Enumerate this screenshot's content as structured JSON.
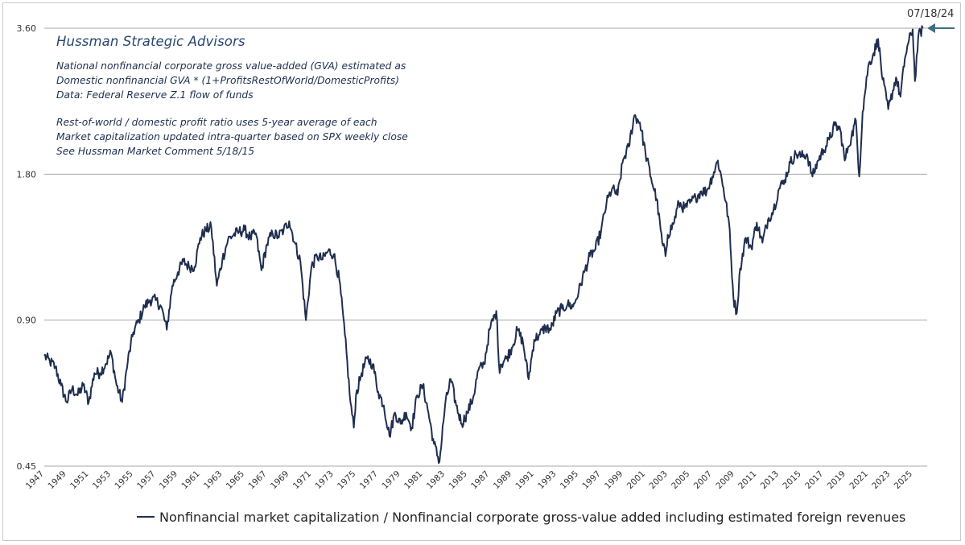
{
  "chart_data": {
    "type": "line",
    "title": "Hussman Strategic Advisors",
    "annotations": [
      "National nonfinancial corporate gross value-added (GVA) estimated as",
      "Domestic nonfinancial GVA * (1+ProfitsRestOfWorld/DomesticProfits)",
      "Data: Federal Reserve Z.1 flow of funds",
      "Rest-of-world / domestic profit ratio uses 5-year average of each",
      "Market capitalization updated intra-quarter based on SPX weekly close",
      "See Hussman Market Comment 5/18/15"
    ],
    "y_scale": "log",
    "ylim": [
      0.45,
      3.6
    ],
    "y_ticks": [
      0.45,
      0.9,
      1.8,
      3.6
    ],
    "y_tick_labels": [
      "0.45",
      "0.90",
      "1.80",
      "3.60"
    ],
    "xlim": [
      1947,
      2026.3
    ],
    "x_ticks": [
      1947,
      1949,
      1951,
      1953,
      1955,
      1957,
      1959,
      1961,
      1963,
      1965,
      1967,
      1969,
      1971,
      1973,
      1975,
      1977,
      1979,
      1981,
      1983,
      1985,
      1987,
      1989,
      1991,
      1993,
      1995,
      1997,
      1999,
      2001,
      2003,
      2005,
      2007,
      2009,
      2011,
      2013,
      2015,
      2017,
      2019,
      2021,
      2023,
      2025
    ],
    "latest_marker": "07/18/24",
    "legend": [
      "Nonfinancial market capitalization / Nonfinancial corporate gross-value added including estimated foreign revenues"
    ],
    "grid": "horizontal",
    "series": [
      {
        "name": "Nonfinancial market capitalization / Nonfinancial corporate gross-value added including estimated foreign revenues",
        "color": "#1f2e4f",
        "points": [
          [
            1947.0,
            0.76
          ],
          [
            1947.5,
            0.74
          ],
          [
            1948.0,
            0.72
          ],
          [
            1948.5,
            0.66
          ],
          [
            1949.0,
            0.61
          ],
          [
            1949.5,
            0.65
          ],
          [
            1950.0,
            0.63
          ],
          [
            1950.5,
            0.66
          ],
          [
            1951.0,
            0.61
          ],
          [
            1951.5,
            0.7
          ],
          [
            1952.0,
            0.7
          ],
          [
            1952.5,
            0.73
          ],
          [
            1953.0,
            0.77
          ],
          [
            1953.5,
            0.66
          ],
          [
            1954.0,
            0.61
          ],
          [
            1954.5,
            0.74
          ],
          [
            1955.0,
            0.85
          ],
          [
            1955.5,
            0.9
          ],
          [
            1956.0,
            0.96
          ],
          [
            1956.5,
            0.99
          ],
          [
            1957.0,
            0.99
          ],
          [
            1957.5,
            0.96
          ],
          [
            1958.0,
            0.86
          ],
          [
            1958.5,
            1.06
          ],
          [
            1959.0,
            1.13
          ],
          [
            1959.5,
            1.19
          ],
          [
            1960.0,
            1.16
          ],
          [
            1960.5,
            1.16
          ],
          [
            1961.0,
            1.33
          ],
          [
            1961.5,
            1.38
          ],
          [
            1962.0,
            1.4
          ],
          [
            1962.5,
            1.06
          ],
          [
            1963.0,
            1.2
          ],
          [
            1963.5,
            1.32
          ],
          [
            1964.0,
            1.35
          ],
          [
            1964.5,
            1.37
          ],
          [
            1965.0,
            1.38
          ],
          [
            1965.5,
            1.33
          ],
          [
            1966.0,
            1.36
          ],
          [
            1966.5,
            1.14
          ],
          [
            1967.0,
            1.29
          ],
          [
            1967.5,
            1.36
          ],
          [
            1968.0,
            1.34
          ],
          [
            1968.5,
            1.38
          ],
          [
            1969.0,
            1.44
          ],
          [
            1969.5,
            1.3
          ],
          [
            1970.0,
            1.19
          ],
          [
            1970.5,
            0.9
          ],
          [
            1971.0,
            1.16
          ],
          [
            1971.5,
            1.22
          ],
          [
            1972.0,
            1.2
          ],
          [
            1972.5,
            1.25
          ],
          [
            1973.0,
            1.23
          ],
          [
            1973.5,
            1.09
          ],
          [
            1974.0,
            0.84
          ],
          [
            1974.5,
            0.61
          ],
          [
            1974.8,
            0.54
          ],
          [
            1975.0,
            0.63
          ],
          [
            1975.5,
            0.7
          ],
          [
            1976.0,
            0.75
          ],
          [
            1976.5,
            0.73
          ],
          [
            1977.0,
            0.64
          ],
          [
            1977.5,
            0.6
          ],
          [
            1978.0,
            0.52
          ],
          [
            1978.5,
            0.58
          ],
          [
            1979.0,
            0.55
          ],
          [
            1979.5,
            0.58
          ],
          [
            1980.0,
            0.54
          ],
          [
            1980.5,
            0.63
          ],
          [
            1981.0,
            0.66
          ],
          [
            1981.5,
            0.58
          ],
          [
            1982.0,
            0.5
          ],
          [
            1982.5,
            0.46
          ],
          [
            1983.0,
            0.6
          ],
          [
            1983.5,
            0.68
          ],
          [
            1984.0,
            0.6
          ],
          [
            1984.5,
            0.55
          ],
          [
            1985.0,
            0.58
          ],
          [
            1985.5,
            0.62
          ],
          [
            1986.0,
            0.71
          ],
          [
            1986.5,
            0.73
          ],
          [
            1987.0,
            0.86
          ],
          [
            1987.6,
            0.94
          ],
          [
            1987.9,
            0.7
          ],
          [
            1988.0,
            0.73
          ],
          [
            1988.5,
            0.75
          ],
          [
            1989.0,
            0.79
          ],
          [
            1989.5,
            0.86
          ],
          [
            1990.0,
            0.81
          ],
          [
            1990.5,
            0.68
          ],
          [
            1991.0,
            0.82
          ],
          [
            1991.5,
            0.84
          ],
          [
            1992.0,
            0.87
          ],
          [
            1992.5,
            0.86
          ],
          [
            1993.0,
            0.93
          ],
          [
            1993.5,
            0.95
          ],
          [
            1994.0,
            0.97
          ],
          [
            1994.5,
            0.96
          ],
          [
            1995.0,
            1.03
          ],
          [
            1995.5,
            1.13
          ],
          [
            1996.0,
            1.22
          ],
          [
            1996.5,
            1.26
          ],
          [
            1997.0,
            1.37
          ],
          [
            1997.5,
            1.57
          ],
          [
            1998.0,
            1.68
          ],
          [
            1998.5,
            1.63
          ],
          [
            1999.0,
            1.93
          ],
          [
            1999.5,
            2.05
          ],
          [
            2000.0,
            2.38
          ],
          [
            2000.5,
            2.3
          ],
          [
            2001.0,
            1.99
          ],
          [
            2001.5,
            1.77
          ],
          [
            2002.0,
            1.6
          ],
          [
            2002.5,
            1.3
          ],
          [
            2002.8,
            1.22
          ],
          [
            2003.0,
            1.35
          ],
          [
            2003.5,
            1.42
          ],
          [
            2004.0,
            1.57
          ],
          [
            2004.5,
            1.53
          ],
          [
            2005.0,
            1.57
          ],
          [
            2005.5,
            1.61
          ],
          [
            2006.0,
            1.66
          ],
          [
            2006.5,
            1.66
          ],
          [
            2007.0,
            1.78
          ],
          [
            2007.5,
            1.92
          ],
          [
            2008.0,
            1.69
          ],
          [
            2008.5,
            1.43
          ],
          [
            2008.9,
            1.0
          ],
          [
            2009.2,
            0.93
          ],
          [
            2009.5,
            1.15
          ],
          [
            2010.0,
            1.33
          ],
          [
            2010.5,
            1.27
          ],
          [
            2011.0,
            1.43
          ],
          [
            2011.5,
            1.3
          ],
          [
            2012.0,
            1.45
          ],
          [
            2012.5,
            1.52
          ],
          [
            2013.0,
            1.68
          ],
          [
            2013.5,
            1.75
          ],
          [
            2014.0,
            1.9
          ],
          [
            2014.5,
            1.98
          ],
          [
            2015.0,
            1.96
          ],
          [
            2015.5,
            1.98
          ],
          [
            2016.0,
            1.78
          ],
          [
            2016.5,
            1.92
          ],
          [
            2017.0,
            2.02
          ],
          [
            2017.5,
            2.12
          ],
          [
            2018.0,
            2.27
          ],
          [
            2018.5,
            2.22
          ],
          [
            2018.9,
            1.92
          ],
          [
            2019.2,
            2.05
          ],
          [
            2019.5,
            2.15
          ],
          [
            2019.9,
            2.32
          ],
          [
            2020.2,
            1.78
          ],
          [
            2020.5,
            2.42
          ],
          [
            2021.0,
            3.0
          ],
          [
            2021.5,
            3.2
          ],
          [
            2021.9,
            3.42
          ],
          [
            2022.3,
            2.82
          ],
          [
            2022.8,
            2.45
          ],
          [
            2023.0,
            2.55
          ],
          [
            2023.5,
            2.85
          ],
          [
            2023.9,
            2.6
          ],
          [
            2024.3,
            3.12
          ],
          [
            2024.6,
            3.35
          ],
          [
            2025.0,
            3.58
          ],
          [
            2025.2,
            2.8
          ],
          [
            2025.5,
            3.45
          ],
          [
            2025.9,
            3.6
          ]
        ]
      }
    ]
  }
}
